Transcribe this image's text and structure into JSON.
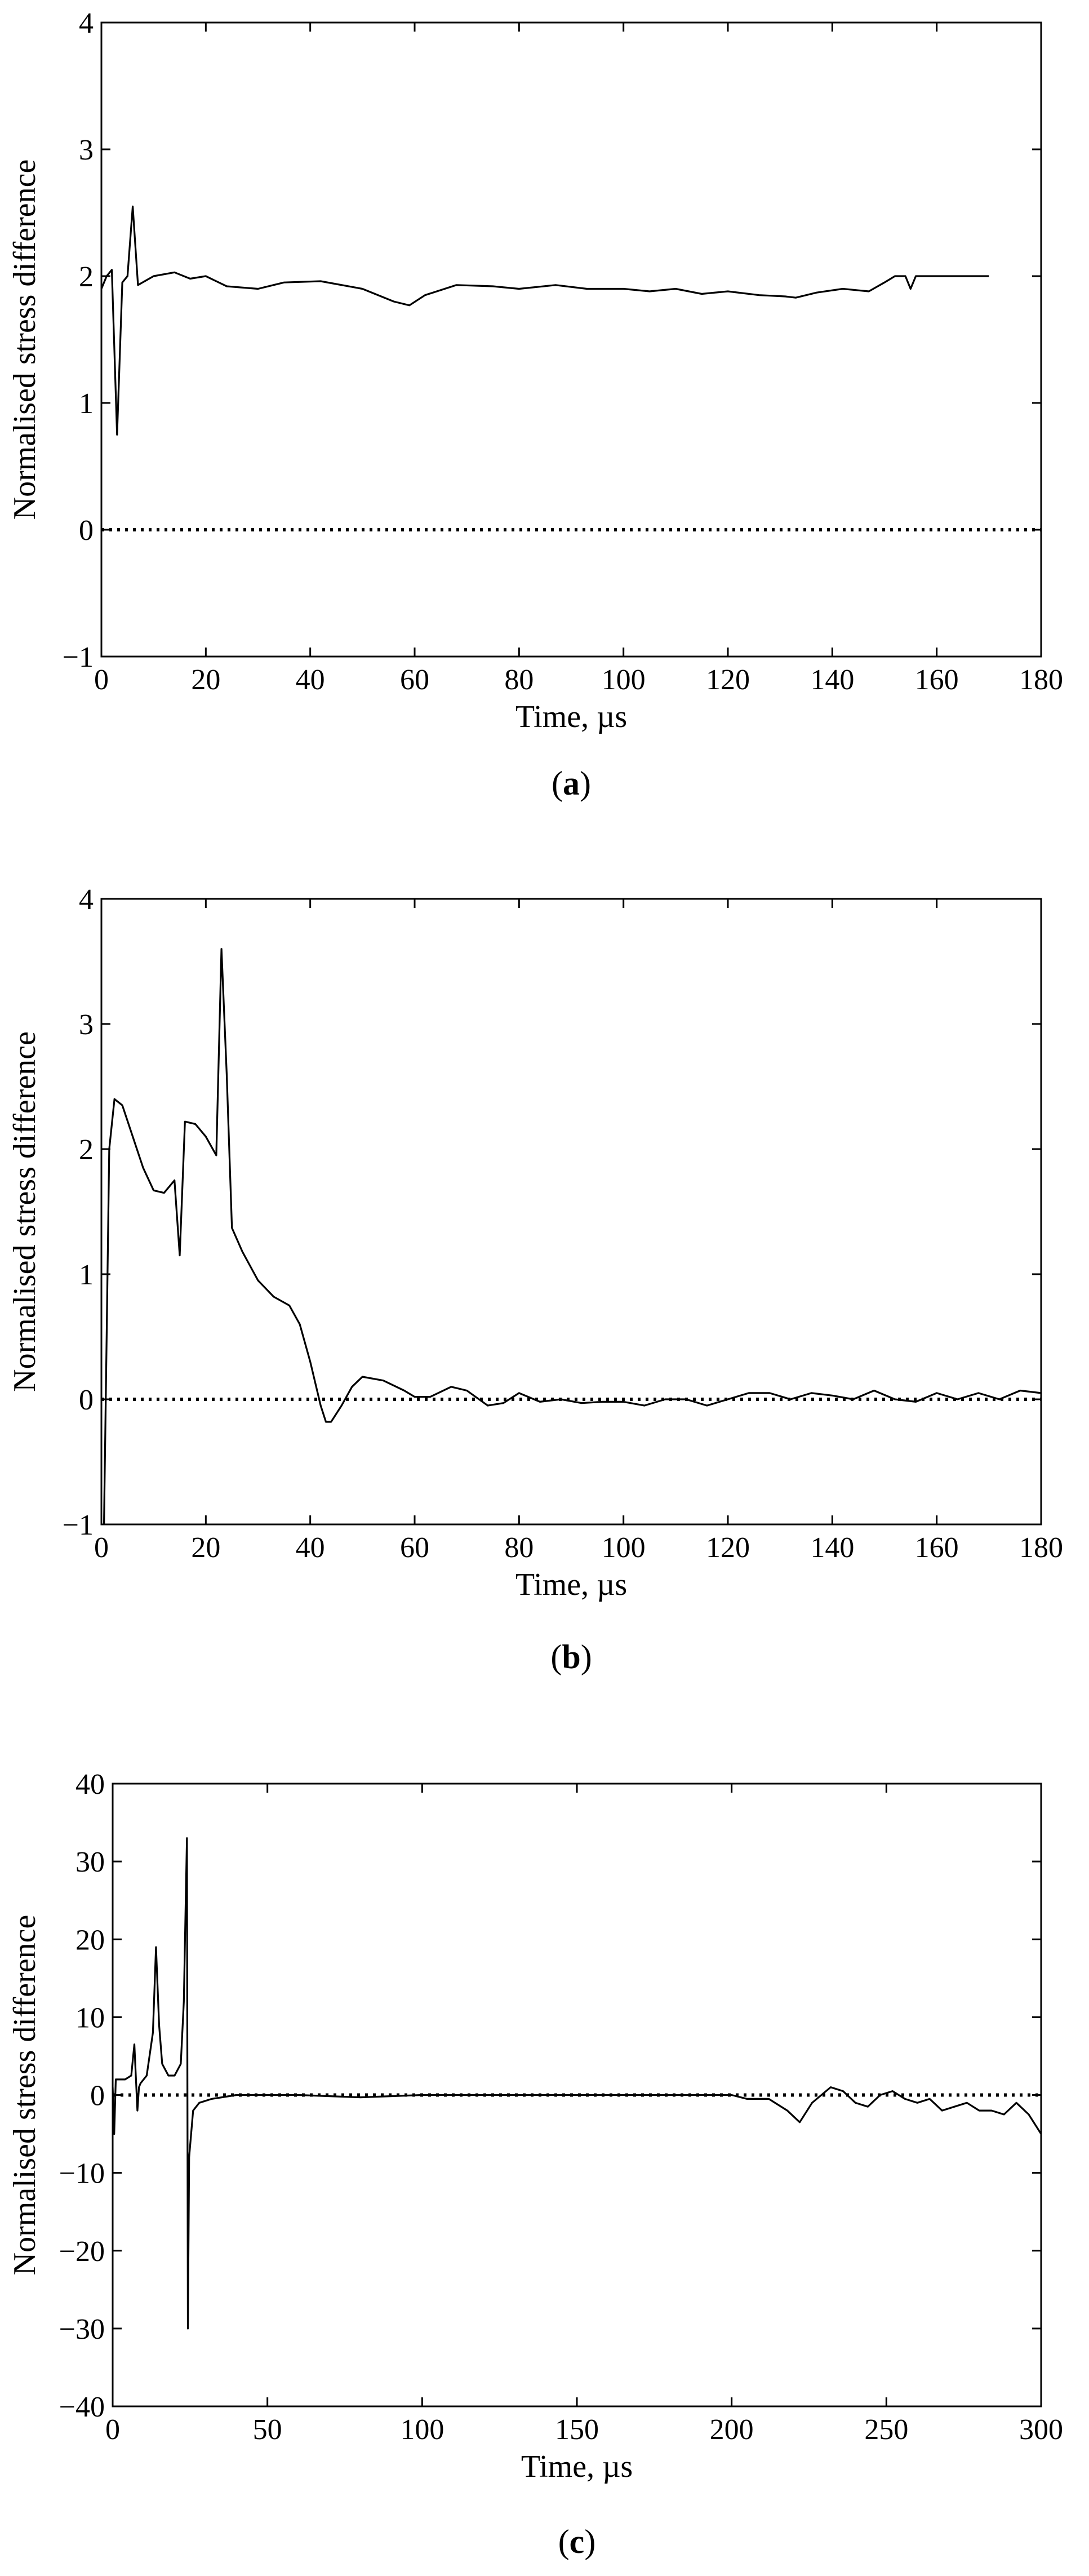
{
  "chart_data": [
    {
      "type": "line",
      "caption_letter": "a",
      "xlabel": "Time, µs",
      "ylabel": "Normalised stress difference",
      "xlim": [
        0,
        180
      ],
      "ylim": [
        -1,
        4
      ],
      "xticks": [
        0,
        20,
        40,
        60,
        80,
        100,
        120,
        140,
        160,
        180
      ],
      "yticks": [
        -1,
        0,
        1,
        2,
        3,
        4
      ],
      "xtick_labels": [
        "0",
        "20",
        "40",
        "60",
        "80",
        "100",
        "120",
        "140",
        "160",
        "180"
      ],
      "ytick_labels": [
        "−1",
        "0",
        "1",
        "2",
        "3",
        "4"
      ],
      "reference_line": {
        "y": 0,
        "style": "dotted"
      },
      "series": [
        {
          "name": "stress difference",
          "x": [
            0,
            1,
            2,
            3,
            4,
            5,
            6,
            7,
            10,
            14,
            17,
            20,
            24,
            30,
            35,
            42,
            50,
            56,
            59,
            62,
            68,
            75,
            80,
            87,
            93,
            100,
            105,
            110,
            115,
            120,
            126,
            131,
            133,
            137,
            142,
            147,
            150,
            152,
            154,
            155,
            156,
            160,
            165,
            170
          ],
          "y": [
            1.9,
            2.0,
            2.05,
            0.75,
            1.95,
            2.0,
            2.55,
            1.93,
            2.0,
            2.03,
            1.98,
            2.0,
            1.92,
            1.9,
            1.95,
            1.96,
            1.9,
            1.8,
            1.77,
            1.85,
            1.93,
            1.92,
            1.9,
            1.93,
            1.9,
            1.9,
            1.88,
            1.9,
            1.86,
            1.88,
            1.85,
            1.84,
            1.83,
            1.87,
            1.9,
            1.88,
            1.95,
            2.0,
            2.0,
            1.9,
            2.0,
            2.0,
            2.0,
            2.0
          ]
        }
      ]
    },
    {
      "type": "line",
      "caption_letter": "b",
      "xlabel": "Time, µs",
      "ylabel": "Normalised stress difference",
      "xlim": [
        0,
        180
      ],
      "ylim": [
        -1,
        4
      ],
      "xticks": [
        0,
        20,
        40,
        60,
        80,
        100,
        120,
        140,
        160,
        180
      ],
      "yticks": [
        -1,
        0,
        1,
        2,
        3,
        4
      ],
      "xtick_labels": [
        "0",
        "20",
        "40",
        "60",
        "80",
        "100",
        "120",
        "140",
        "160",
        "180"
      ],
      "ytick_labels": [
        "−1",
        "0",
        "1",
        "2",
        "3",
        "4"
      ],
      "reference_line": {
        "y": 0,
        "style": "dotted"
      },
      "series": [
        {
          "name": "stress difference",
          "x": [
            0.5,
            1,
            1.5,
            2.5,
            4,
            6,
            8,
            10,
            12,
            14,
            15,
            16,
            18,
            20,
            22,
            23,
            24,
            25,
            27,
            30,
            33,
            36,
            38,
            40,
            42,
            43,
            44,
            46,
            48,
            50,
            54,
            58,
            60,
            63,
            67,
            70,
            74,
            77,
            80,
            84,
            88,
            92,
            96,
            100,
            104,
            108,
            112,
            116,
            120,
            124,
            128,
            132,
            136,
            140,
            144,
            148,
            152,
            156,
            160,
            164,
            168,
            172,
            176,
            180
          ],
          "y": [
            -1.0,
            0.5,
            2.0,
            2.4,
            2.35,
            2.1,
            1.85,
            1.67,
            1.65,
            1.75,
            1.15,
            2.22,
            2.2,
            2.1,
            1.95,
            3.6,
            2.6,
            1.37,
            1.18,
            0.95,
            0.82,
            0.75,
            0.6,
            0.3,
            -0.05,
            -0.18,
            -0.18,
            -0.05,
            0.1,
            0.18,
            0.15,
            0.07,
            0.02,
            0.02,
            0.1,
            0.07,
            -0.05,
            -0.03,
            0.05,
            -0.02,
            0.0,
            -0.03,
            -0.02,
            -0.02,
            -0.05,
            0.0,
            0.0,
            -0.05,
            0.0,
            0.05,
            0.05,
            0.0,
            0.05,
            0.03,
            0.0,
            0.07,
            0.0,
            -0.02,
            0.05,
            0.0,
            0.05,
            0.0,
            0.07,
            0.05
          ]
        }
      ]
    },
    {
      "type": "line",
      "caption_letter": "c",
      "xlabel": "Time, µs",
      "ylabel": "Normalised stress difference",
      "xlim": [
        0,
        300
      ],
      "ylim": [
        -40,
        40
      ],
      "xticks": [
        0,
        50,
        100,
        150,
        200,
        250,
        300
      ],
      "yticks": [
        -40,
        -30,
        -20,
        -10,
        0,
        10,
        20,
        30,
        40
      ],
      "xtick_labels": [
        "0",
        "50",
        "100",
        "150",
        "200",
        "250",
        "300"
      ],
      "ytick_labels": [
        "−40",
        "−30",
        "−20",
        "−10",
        "0",
        "10",
        "20",
        "30",
        "40"
      ],
      "reference_line": {
        "y": 0,
        "style": "dotted"
      },
      "series": [
        {
          "name": "stress difference",
          "x": [
            0,
            0.5,
            1,
            2,
            4,
            6,
            7,
            8,
            8.5,
            9,
            11,
            13,
            14,
            15,
            16,
            18,
            20,
            22,
            23,
            24,
            24.3,
            24.7,
            26,
            28,
            32,
            40,
            60,
            80,
            100,
            120,
            140,
            160,
            180,
            200,
            205,
            212,
            218,
            222,
            226,
            232,
            236,
            240,
            244,
            248,
            252,
            256,
            260,
            264,
            268,
            272,
            276,
            280,
            284,
            288,
            292,
            296,
            300
          ],
          "y": [
            1.0,
            -5.0,
            2.0,
            2.0,
            2.0,
            2.5,
            6.5,
            -2.0,
            1.0,
            1.5,
            2.5,
            8.0,
            19.0,
            9.0,
            4.0,
            2.5,
            2.5,
            4.0,
            12.0,
            33.0,
            -30.0,
            -8.0,
            -2.0,
            -1.0,
            -0.5,
            0.0,
            0.0,
            -0.3,
            0.0,
            0.0,
            0.0,
            0.0,
            0.0,
            0.0,
            -0.5,
            -0.5,
            -2.0,
            -3.5,
            -1.0,
            1.0,
            0.5,
            -1.0,
            -1.5,
            0.0,
            0.5,
            -0.5,
            -1.0,
            -0.5,
            -2.0,
            -1.5,
            -1.0,
            -2.0,
            -2.0,
            -2.5,
            -1.0,
            -2.5,
            -5.0
          ]
        }
      ]
    }
  ]
}
